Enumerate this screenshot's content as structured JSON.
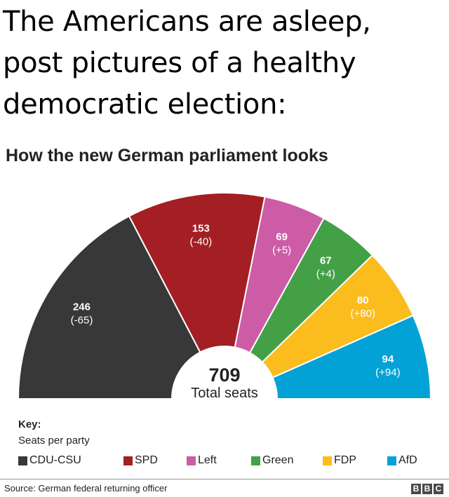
{
  "caption": {
    "line1": "The Americans are asleep,",
    "line2": "post pictures of a healthy",
    "line3": "democratic election:"
  },
  "chart_data": {
    "type": "pie",
    "variant": "semicircle-parliament",
    "title": "How the new German parliament looks",
    "center_value": "709",
    "center_label": "Total seats",
    "slices": [
      {
        "party": "CDU-CSU",
        "seats": 246,
        "change": "(-65)",
        "color": "#383838"
      },
      {
        "party": "SPD",
        "seats": 153,
        "change": "(-40)",
        "color": "#a31f23"
      },
      {
        "party": "Left",
        "seats": 69,
        "change": "(+5)",
        "color": "#cc5ca6"
      },
      {
        "party": "Green",
        "seats": 67,
        "change": "(+4)",
        "color": "#43a046"
      },
      {
        "party": "FDP",
        "seats": 80,
        "change": "(+80)",
        "color": "#fbbc1d"
      },
      {
        "party": "AfD",
        "seats": 94,
        "change": "(+94)",
        "color": "#03a2d6"
      }
    ],
    "legend_position": "bottom"
  },
  "key": {
    "title": "Key:",
    "subtitle": "Seats per party",
    "items": [
      {
        "label": "CDU-CSU",
        "color": "#383838"
      },
      {
        "label": "SPD",
        "color": "#a31f23"
      },
      {
        "label": "Left",
        "color": "#cc5ca6"
      },
      {
        "label": "Green",
        "color": "#43a046"
      },
      {
        "label": "FDP",
        "color": "#fbbc1d"
      },
      {
        "label": "AfD",
        "color": "#03a2d6"
      }
    ]
  },
  "footer": {
    "source": "Source: German federal returning officer",
    "logo_letters": [
      "B",
      "B",
      "C"
    ]
  }
}
